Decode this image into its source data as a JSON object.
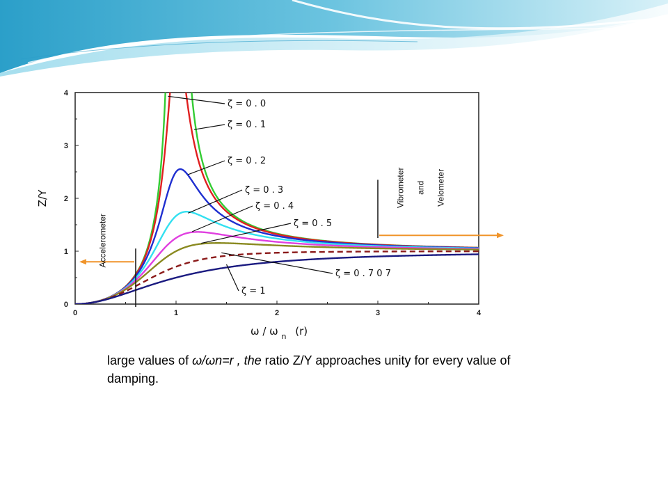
{
  "caption": {
    "part1": "large values of ",
    "italic": "ω/ωn=r , the",
    "part2": " ratio Z/Y approaches unity for every value of damping."
  },
  "colors": {
    "banner_light": "#bfe6f2",
    "banner_mid": "#6cc4e0",
    "banner_dark": "#2b9fc9",
    "arrow": "#f0942a"
  },
  "chart_data": {
    "type": "line",
    "xlabel": "ω / ω",
    "xlabel_sub": "n",
    "xlabel_suffix": "(r)",
    "ylabel": "Z/Y",
    "xlim": [
      0,
      4
    ],
    "ylim": [
      0,
      4
    ],
    "xticks": [
      "0",
      "1",
      "2",
      "3",
      "4"
    ],
    "yticks": [
      "0",
      "1",
      "2",
      "3",
      "4"
    ],
    "grid": false,
    "series": [
      {
        "name": "ζ = 0 . 0",
        "zeta": 0.0,
        "color": "#33cc33",
        "dash": ""
      },
      {
        "name": "ζ = 0 . 1",
        "zeta": 0.1,
        "color": "#e02020",
        "dash": ""
      },
      {
        "name": "ζ = 0 . 2",
        "zeta": 0.2,
        "color": "#1f2fd0",
        "dash": ""
      },
      {
        "name": "ζ = 0 . 3",
        "zeta": 0.3,
        "color": "#33e0f0",
        "dash": ""
      },
      {
        "name": "ζ = 0 . 4",
        "zeta": 0.4,
        "color": "#e040e0",
        "dash": ""
      },
      {
        "name": "ζ = 0 . 5",
        "zeta": 0.5,
        "color": "#8a8a20",
        "dash": ""
      },
      {
        "name": "ζ = 0 . 7 0 7",
        "zeta": 0.707,
        "color": "#8b1a1a",
        "dash": "8,5"
      },
      {
        "name": "ζ = 1",
        "zeta": 1.0,
        "color": "#1a1a80",
        "dash": ""
      }
    ],
    "annotations": [
      {
        "text": "Accelerometer",
        "x": 0.3,
        "y": 1.2
      },
      {
        "text": "Vibrometer",
        "x": 3.25,
        "y": 2.2
      },
      {
        "text": "and",
        "x": 3.45,
        "y": 2.2
      },
      {
        "text": "Velometer",
        "x": 3.65,
        "y": 2.2
      }
    ],
    "region_markers": {
      "left_x": 0.6,
      "right_x": 3.0
    }
  }
}
